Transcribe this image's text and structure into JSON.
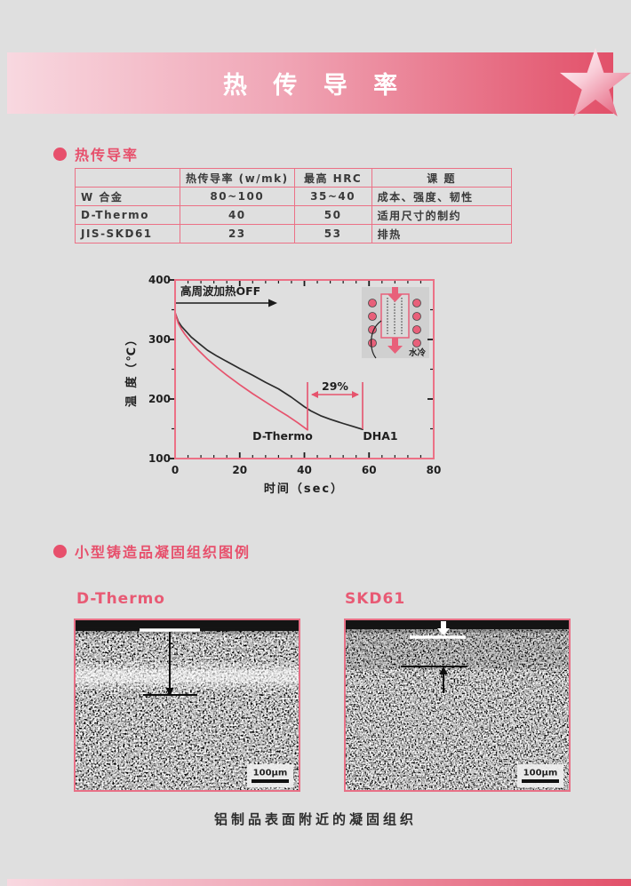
{
  "banner": {
    "title": "热 传 导 率"
  },
  "sections": {
    "thermal": "热传导率",
    "micro": "小型铸造品凝固组织图例"
  },
  "table": {
    "headers": [
      "",
      "热传导率 (w/mk)",
      "最高 HRC",
      "课 题"
    ],
    "rows": [
      {
        "material": "W 合金",
        "conductivity": "80~100",
        "max_hrc": "35~40",
        "issue": "成本、强度、韧性"
      },
      {
        "material": "D-Thermo",
        "conductivity": "40",
        "max_hrc": "50",
        "issue": "适用尺寸的制约"
      },
      {
        "material": "JIS-SKD61",
        "conductivity": "23",
        "max_hrc": "53",
        "issue": "排热"
      }
    ]
  },
  "chart_data": {
    "type": "line",
    "title": "",
    "xlabel": "时间（sec）",
    "ylabel": "温 度（℃）",
    "xlim": [
      0,
      80
    ],
    "ylim": [
      100,
      400
    ],
    "x_ticks": [
      0,
      20,
      40,
      60,
      80
    ],
    "y_ticks": [
      100,
      200,
      300,
      400
    ],
    "x_minor_step": 4,
    "y_minor_step": 50,
    "grid": false,
    "legend_position": "none",
    "series": [
      {
        "name": "DHA1",
        "color": "#2b2b2b",
        "points": [
          [
            0,
            345
          ],
          [
            1,
            330
          ],
          [
            2,
            322
          ],
          [
            3,
            316
          ],
          [
            5,
            304
          ],
          [
            7,
            295
          ],
          [
            10,
            282
          ],
          [
            13,
            272
          ],
          [
            16,
            263
          ],
          [
            20,
            251
          ],
          [
            24,
            240
          ],
          [
            28,
            228
          ],
          [
            32,
            217
          ],
          [
            36,
            203
          ],
          [
            40,
            187
          ],
          [
            42,
            180
          ],
          [
            45,
            172
          ],
          [
            48,
            166
          ],
          [
            52,
            159
          ],
          [
            55,
            154
          ],
          [
            58,
            149
          ]
        ]
      },
      {
        "name": "D-Thermo",
        "color": "#e6536d",
        "points": [
          [
            0,
            345
          ],
          [
            1,
            327
          ],
          [
            2,
            317
          ],
          [
            3,
            309
          ],
          [
            5,
            295
          ],
          [
            7,
            283
          ],
          [
            10,
            267
          ],
          [
            13,
            253
          ],
          [
            16,
            240
          ],
          [
            20,
            224
          ],
          [
            24,
            209
          ],
          [
            28,
            195
          ],
          [
            32,
            181
          ],
          [
            35,
            171
          ],
          [
            38,
            160
          ],
          [
            41,
            148
          ]
        ]
      }
    ],
    "annotations": {
      "heater_off": "高周波加热OFF",
      "gap_percent": "29%",
      "label_left": "D-Thermo",
      "label_right": "DHA1",
      "inset_caption": "水冷"
    }
  },
  "micrographs": {
    "left_title": "D-Thermo",
    "right_title": "SKD61",
    "scale_label": "100μm",
    "caption": "铝制品表面附近的凝固组织"
  }
}
